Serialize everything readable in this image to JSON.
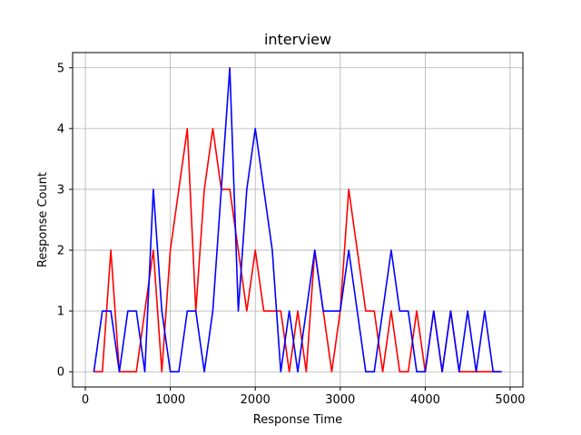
{
  "chart_data": {
    "type": "line",
    "title": "interview",
    "xlabel": "Response Time",
    "ylabel": "Response Count",
    "xlim": [
      -150,
      5150
    ],
    "ylim": [
      -0.25,
      5.25
    ],
    "xticks": [
      0,
      1000,
      2000,
      3000,
      4000,
      5000
    ],
    "yticks": [
      0,
      1,
      2,
      3,
      4,
      5
    ],
    "grid": true,
    "x": [
      100,
      200,
      300,
      400,
      500,
      600,
      700,
      800,
      900,
      1000,
      1100,
      1200,
      1300,
      1400,
      1500,
      1600,
      1700,
      1800,
      1900,
      2000,
      2100,
      2200,
      2300,
      2400,
      2500,
      2600,
      2700,
      2800,
      2900,
      3000,
      3100,
      3200,
      3300,
      3400,
      3500,
      3600,
      3700,
      3800,
      3900,
      4000,
      4100,
      4200,
      4300,
      4400,
      4500,
      4600,
      4700,
      4800,
      4900
    ],
    "series": [
      {
        "color": "#ff0000",
        "values": [
          0,
          0,
          2,
          0,
          0,
          0,
          1,
          2,
          0,
          2,
          3,
          4,
          1,
          3,
          4,
          3,
          3,
          2,
          1,
          2,
          1,
          1,
          1,
          0,
          1,
          0,
          2,
          1,
          0,
          1,
          3,
          2,
          1,
          1,
          0,
          1,
          0,
          0,
          1,
          0,
          1,
          0,
          1,
          0,
          0,
          0,
          0,
          0,
          0
        ]
      },
      {
        "color": "#0000ff",
        "values": [
          0,
          1,
          1,
          0,
          1,
          1,
          0,
          3,
          1,
          0,
          0,
          1,
          1,
          0,
          1,
          3,
          5,
          1,
          3,
          4,
          3,
          2,
          0,
          1,
          0,
          1,
          2,
          1,
          1,
          1,
          2,
          1,
          0,
          0,
          1,
          2,
          1,
          1,
          0,
          0,
          1,
          0,
          1,
          0,
          1,
          0,
          1,
          0,
          0
        ]
      }
    ]
  }
}
